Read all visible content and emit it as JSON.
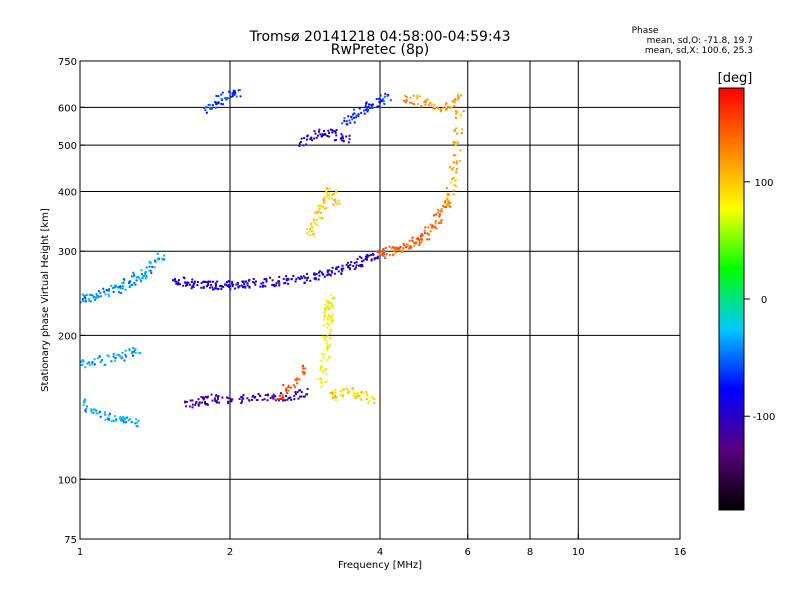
{
  "chart_data": {
    "type": "scatter",
    "title": "Tromsø 20141218 04:58:00-04:59:43",
    "subtitle": "RwPretec (8p)",
    "xlabel": "Frequency [MHz]",
    "ylabel": "Stationary phase Virtual Height [km]",
    "x_scale": "log",
    "y_scale": "log",
    "xlim": [
      1,
      16
    ],
    "ylim": [
      75,
      750
    ],
    "x_ticks": [
      1,
      2,
      4,
      6,
      8,
      10,
      16
    ],
    "y_ticks": [
      75,
      100,
      200,
      300,
      400,
      500,
      600,
      750
    ],
    "x_gridlines": [
      2,
      4,
      6,
      8,
      10
    ],
    "y_gridlines": [
      100,
      200,
      300,
      400,
      500,
      600
    ],
    "grid": true,
    "stats": {
      "heading": "Phase",
      "line_o": "mean, sd,O: -71.8, 19.7",
      "line_x": "mean, sd,X: 100.6, 25.3"
    },
    "colorbar": {
      "label": "[deg]",
      "range": [
        -180,
        180
      ],
      "ticks": [
        100,
        0,
        -100
      ],
      "stops": [
        "#000000",
        "#5a0080",
        "#0000ff",
        "#00c8ff",
        "#00ff00",
        "#ffff00",
        "#ff8000",
        "#ff0000"
      ]
    },
    "traces": [
      {
        "name": "",
        "f": [
          1.0,
          1.03,
          1.06,
          1.09,
          1.12,
          1.15,
          1.18,
          1.21,
          1.24,
          1.27,
          1.3,
          1.33,
          1.36,
          1.4,
          1.45
        ],
        "h": [
          240,
          241,
          243,
          245,
          247,
          250,
          252,
          255,
          258,
          262,
          266,
          270,
          275,
          282,
          292
        ],
        "phase": -40
      },
      {
        "name": "",
        "f": [
          1.0,
          1.04,
          1.08,
          1.12,
          1.16,
          1.2,
          1.24,
          1.28
        ],
        "h": [
          145,
          140,
          138,
          136,
          135,
          134,
          133,
          132
        ],
        "phase": -35
      },
      {
        "name": "",
        "f": [
          1.0,
          1.05,
          1.1,
          1.15,
          1.2,
          1.25,
          1.3
        ],
        "h": [
          175,
          176,
          178,
          180,
          182,
          184,
          186
        ],
        "phase": -38
      },
      {
        "name": "",
        "f": [
          1.55,
          1.6,
          1.65,
          1.7,
          1.75,
          1.8,
          1.85,
          1.9,
          1.95,
          2.0,
          2.05,
          2.1,
          2.15,
          2.2,
          2.3,
          2.4,
          2.5,
          2.6,
          2.7,
          2.8,
          2.9,
          3.0,
          3.1,
          3.2,
          3.3,
          3.4,
          3.5,
          3.6,
          3.7,
          3.8,
          3.9,
          4.0
        ],
        "h": [
          262,
          260,
          258,
          257,
          256,
          255,
          255,
          255,
          255,
          256,
          256,
          257,
          257,
          258,
          259,
          260,
          261,
          262,
          263,
          264,
          266,
          268,
          270,
          273,
          276,
          279,
          282,
          285,
          288,
          291,
          294,
          298
        ],
        "phase": -95
      },
      {
        "name": "",
        "f": [
          4.0,
          4.1,
          4.2,
          4.3,
          4.4,
          4.5,
          4.6,
          4.7,
          4.8,
          4.9,
          5.0,
          5.1,
          5.2,
          5.3,
          5.4
        ],
        "h": [
          298,
          300,
          302,
          304,
          306,
          309,
          312,
          316,
          320,
          326,
          333,
          342,
          352,
          365,
          380
        ],
        "phase": 140
      },
      {
        "name": "",
        "f": [
          5.4,
          5.5,
          5.55,
          5.6,
          5.65,
          5.7,
          5.72,
          5.75
        ],
        "h": [
          380,
          400,
          420,
          445,
          470,
          500,
          540,
          580
        ],
        "phase": 110
      },
      {
        "name": "",
        "f": [
          1.65,
          1.7,
          1.75,
          1.8,
          1.85,
          1.9,
          2.0,
          2.1,
          2.2,
          2.3,
          2.4,
          2.5,
          2.6,
          2.7,
          2.8
        ],
        "h": [
          145,
          146,
          147,
          147,
          148,
          148,
          148,
          148,
          148,
          149,
          149,
          150,
          150,
          151,
          152
        ],
        "phase": -110
      },
      {
        "name": "",
        "f": [
          2.5,
          2.6,
          2.7,
          2.8
        ],
        "h": [
          150,
          155,
          160,
          170
        ],
        "phase": 150
      },
      {
        "name": "",
        "f": [
          3.05,
          3.07,
          3.09,
          3.1,
          3.12,
          3.13,
          3.14,
          3.15,
          3.16,
          3.15,
          3.14
        ],
        "h": [
          160,
          170,
          180,
          190,
          200,
          210,
          220,
          230,
          240,
          230,
          220
        ],
        "phase": 80
      },
      {
        "name": "",
        "f": [
          3.2,
          3.3,
          3.4,
          3.5,
          3.6,
          3.7,
          3.8
        ],
        "h": [
          150,
          152,
          153,
          153,
          152,
          150,
          148
        ],
        "phase": 95
      },
      {
        "name": "",
        "f": [
          2.9,
          2.95,
          3.0,
          3.05,
          3.1,
          3.15,
          3.2,
          3.25
        ],
        "h": [
          330,
          345,
          360,
          375,
          390,
          400,
          395,
          385
        ],
        "phase": 100
      },
      {
        "name": "",
        "f": [
          2.8,
          2.9,
          3.0,
          3.1,
          3.2,
          3.3,
          3.4
        ],
        "h": [
          510,
          520,
          530,
          535,
          530,
          525,
          520
        ],
        "phase": -100
      },
      {
        "name": "",
        "f": [
          3.4,
          3.5,
          3.6,
          3.7,
          3.8,
          3.9,
          4.0,
          4.1
        ],
        "h": [
          560,
          570,
          585,
          595,
          605,
          615,
          625,
          635
        ],
        "phase": -70
      },
      {
        "name": "",
        "f": [
          1.8,
          1.85,
          1.9,
          1.95,
          2.0,
          2.05
        ],
        "h": [
          600,
          610,
          625,
          635,
          640,
          645
        ],
        "phase": -60
      },
      {
        "name": "",
        "f": [
          4.5,
          4.7,
          4.9,
          5.1,
          5.3,
          5.5,
          5.7
        ],
        "h": [
          630,
          625,
          615,
          605,
          600,
          610,
          630
        ],
        "phase": 120
      }
    ]
  }
}
